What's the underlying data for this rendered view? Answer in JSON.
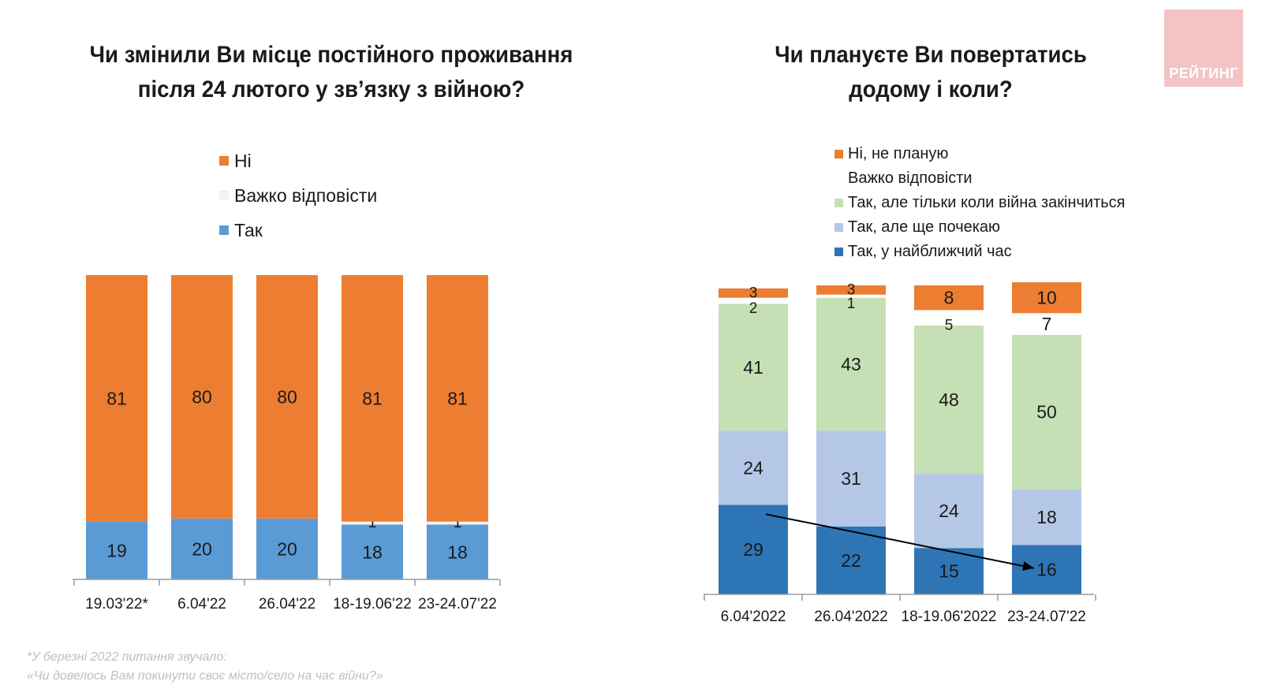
{
  "left_title": {
    "line1": "Чи змінили Ви місце постійного проживання",
    "line2": "після  24 лютого у зв’язку з війною?"
  },
  "right_title": {
    "line1": "Чи плануєте Ви повертатись",
    "line2": "додому і коли?"
  },
  "logo_text": "РЕЙТИНГ",
  "footnote": {
    "line1": "*У березні 2022 питання звучало:",
    "line2": "«Чи довелось Вам покинути своє місто/село на час війни?»"
  },
  "chart_data": [
    {
      "type": "bar",
      "stacked": true,
      "title": "Чи змінили Ви місце постійного проживання після  24 лютого у зв’язку з війною?",
      "categories": [
        "19.03'22*",
        "6.04'22",
        "26.04'22",
        "18-19.06'22",
        "23-24.07'22"
      ],
      "series": [
        {
          "name": "Так",
          "color": "#5b9bd5",
          "values": [
            19,
            20,
            20,
            18,
            18
          ]
        },
        {
          "name": "Важко відповісти",
          "color": "#f2f2f2",
          "values": [
            0,
            0,
            0,
            1,
            1
          ]
        },
        {
          "name": "Ні",
          "color": "#ed7d31",
          "values": [
            81,
            80,
            80,
            81,
            81
          ]
        }
      ],
      "legend_order": [
        "Ні",
        "Важко відповісти",
        "Так"
      ],
      "ylim": [
        0,
        100
      ],
      "grid": false,
      "legend": "top"
    },
    {
      "type": "bar",
      "stacked": true,
      "title": "Чи плануєте Ви повертатись додому і коли?",
      "categories": [
        "6.04'2022",
        "26.04'2022",
        "18-19.06'2022",
        "23-24.07'22"
      ],
      "series": [
        {
          "name": "Так, у найближчий час",
          "color": "#2e75b6",
          "values": [
            29,
            22,
            15,
            16
          ]
        },
        {
          "name": "Так, але ще почекаю",
          "color": "#b4c7e7",
          "values": [
            24,
            31,
            24,
            18
          ]
        },
        {
          "name": "Так, але тільки коли війна закінчиться",
          "color": "#c5e0b4",
          "values": [
            41,
            43,
            48,
            50
          ]
        },
        {
          "name": "Важко відповісти",
          "color": "#ffffff",
          "values": [
            2,
            1,
            5,
            7
          ]
        },
        {
          "name": "Ні, не планую",
          "color": "#ed7d31",
          "values": [
            3,
            3,
            8,
            10
          ]
        }
      ],
      "legend_order": [
        "Ні, не планую",
        "Важко відповісти",
        "Так, але тільки коли війна закінчиться",
        "Так, але ще почекаю",
        "Так, у найближчий час"
      ],
      "ylim": [
        0,
        100
      ],
      "grid": false,
      "legend": "top",
      "annotations": [
        {
          "type": "arrow",
          "from": {
            "category": "6.04'2022",
            "value": 29
          },
          "to": {
            "category": "23-24.07'22",
            "value": 10
          }
        }
      ]
    }
  ]
}
